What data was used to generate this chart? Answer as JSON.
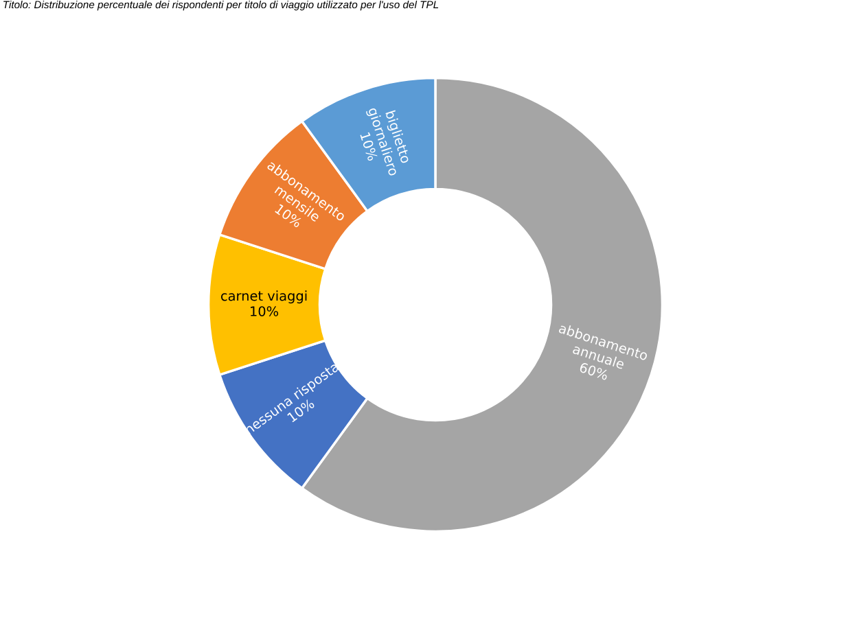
{
  "chart_data": {
    "type": "donut",
    "title": "Titolo: Distribuzione percentuale dei rispondenti per titolo di viaggio utilizzato per l'uso del TPL",
    "categories": [
      "abbonamento\nannuale",
      "nessuna risposta",
      "carnet viaggi",
      "abbonamento\nmensile",
      "biglietto\ngiornaliero"
    ],
    "values": [
      60,
      10,
      10,
      10,
      10
    ],
    "colors": [
      "#a5a5a5",
      "#4472c4",
      "#ffc000",
      "#ed7d31",
      "#5b9bd5"
    ],
    "value_labels": [
      "60%",
      "10%",
      "10%",
      "10%",
      "10%"
    ],
    "legend": false
  }
}
